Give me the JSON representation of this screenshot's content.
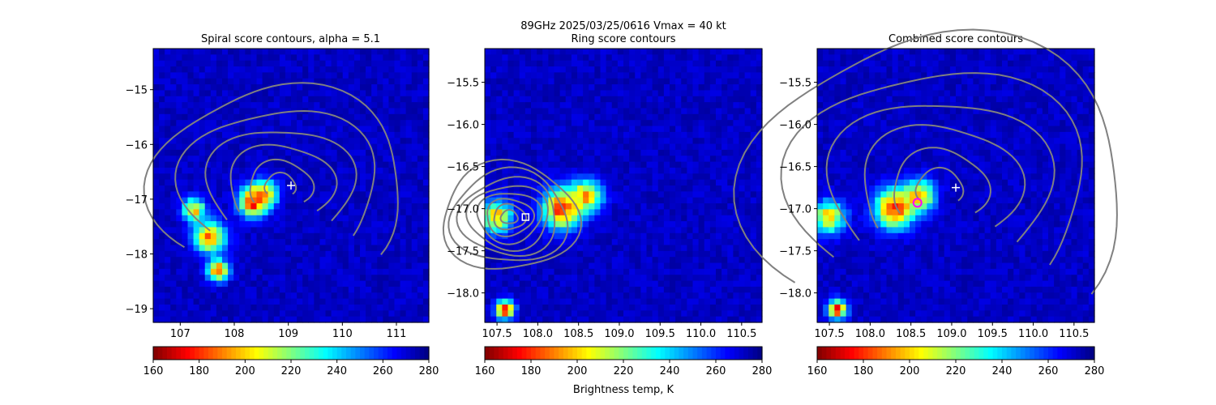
{
  "suptitle_line1": "89GHz  2025/03/25/0616    Vmax = 40 kt",
  "colorbar_label": "Brightness temp, K",
  "colormap": "jet",
  "contour_color": "#808080",
  "chart_data": [
    {
      "type": "heatmap",
      "title": "Spiral score contours, alpha =  5.1",
      "xlim": [
        106.5,
        111.6
      ],
      "ylim": [
        -19.25,
        -14.25
      ],
      "xticks": [
        "107",
        "108",
        "109",
        "110",
        "111"
      ],
      "xtick_values": [
        107,
        108,
        109,
        110,
        111
      ],
      "yticks": [
        "−15",
        "−16",
        "−17",
        "−18",
        "−19"
      ],
      "ytick_values": [
        -15,
        -16,
        -17,
        -18,
        -19
      ],
      "colorbar": {
        "vmin": 160,
        "vmax": 280,
        "ticks": [
          "160",
          "180",
          "200",
          "220",
          "240",
          "260",
          "280"
        ],
        "tick_values": [
          160,
          180,
          200,
          220,
          240,
          260,
          280
        ]
      },
      "markers": [
        {
          "type": "plus",
          "x": 109.05,
          "y": -16.75,
          "color": "#ffffff"
        }
      ],
      "cold_blobs": [
        {
          "x": 108.35,
          "y": -17.05,
          "r": 0.28,
          "t": 163
        },
        {
          "x": 108.55,
          "y": -16.9,
          "r": 0.25,
          "t": 175
        },
        {
          "x": 107.25,
          "y": -17.2,
          "r": 0.22,
          "t": 185
        },
        {
          "x": 107.55,
          "y": -17.7,
          "r": 0.3,
          "t": 172
        },
        {
          "x": 107.7,
          "y": -18.3,
          "r": 0.2,
          "t": 165
        }
      ]
    },
    {
      "type": "heatmap",
      "title": "Ring score contours",
      "xlim": [
        107.35,
        110.75
      ],
      "ylim": [
        -18.35,
        -15.1
      ],
      "xticks": [
        "107.5",
        "108.0",
        "108.5",
        "109.0",
        "109.5",
        "110.0",
        "110.5"
      ],
      "xtick_values": [
        107.5,
        108.0,
        108.5,
        109.0,
        109.5,
        110.0,
        110.5
      ],
      "yticks": [
        "−15.5",
        "−16.0",
        "−16.5",
        "−17.0",
        "−17.5",
        "−18.0"
      ],
      "ytick_values": [
        -15.5,
        -16.0,
        -16.5,
        -17.0,
        -17.5,
        -18.0
      ],
      "colorbar": {
        "vmin": 160,
        "vmax": 280,
        "ticks": [
          "160",
          "180",
          "200",
          "220",
          "240",
          "260",
          "280"
        ],
        "tick_values": [
          160,
          180,
          200,
          220,
          240,
          260,
          280
        ]
      },
      "markers": [
        {
          "type": "square",
          "x": 107.85,
          "y": -17.1,
          "color": "#ffffff"
        }
      ],
      "cold_blobs": [
        {
          "x": 108.3,
          "y": -17.0,
          "r": 0.25,
          "t": 165
        },
        {
          "x": 108.6,
          "y": -16.85,
          "r": 0.2,
          "t": 180
        },
        {
          "x": 107.5,
          "y": -17.1,
          "r": 0.2,
          "t": 185
        },
        {
          "x": 107.6,
          "y": -18.2,
          "r": 0.12,
          "t": 165
        }
      ]
    },
    {
      "type": "heatmap",
      "title": "Combined score contours",
      "xlim": [
        107.35,
        110.75
      ],
      "ylim": [
        -18.35,
        -15.1
      ],
      "xticks": [
        "107.5",
        "108.0",
        "108.5",
        "109.0",
        "109.5",
        "110.0",
        "110.5"
      ],
      "xtick_values": [
        107.5,
        108.0,
        108.5,
        109.0,
        109.5,
        110.0,
        110.5
      ],
      "yticks": [
        "−15.5",
        "−16.0",
        "−16.5",
        "−17.0",
        "−17.5",
        "−18.0"
      ],
      "ytick_values": [
        -15.5,
        -16.0,
        -16.5,
        -17.0,
        -17.5,
        -18.0
      ],
      "colorbar": {
        "vmin": 160,
        "vmax": 280,
        "ticks": [
          "160",
          "180",
          "200",
          "220",
          "240",
          "260",
          "280"
        ],
        "tick_values": [
          160,
          180,
          200,
          220,
          240,
          260,
          280
        ]
      },
      "markers": [
        {
          "type": "plus",
          "x": 109.05,
          "y": -16.75,
          "color": "#ffffff"
        },
        {
          "type": "circle",
          "x": 108.58,
          "y": -16.93,
          "color": "#ff00ff"
        }
      ],
      "cold_blobs": [
        {
          "x": 108.3,
          "y": -17.0,
          "r": 0.25,
          "t": 165
        },
        {
          "x": 108.6,
          "y": -16.85,
          "r": 0.2,
          "t": 180
        },
        {
          "x": 107.5,
          "y": -17.1,
          "r": 0.2,
          "t": 185
        },
        {
          "x": 107.6,
          "y": -18.2,
          "r": 0.12,
          "t": 165
        }
      ]
    }
  ]
}
